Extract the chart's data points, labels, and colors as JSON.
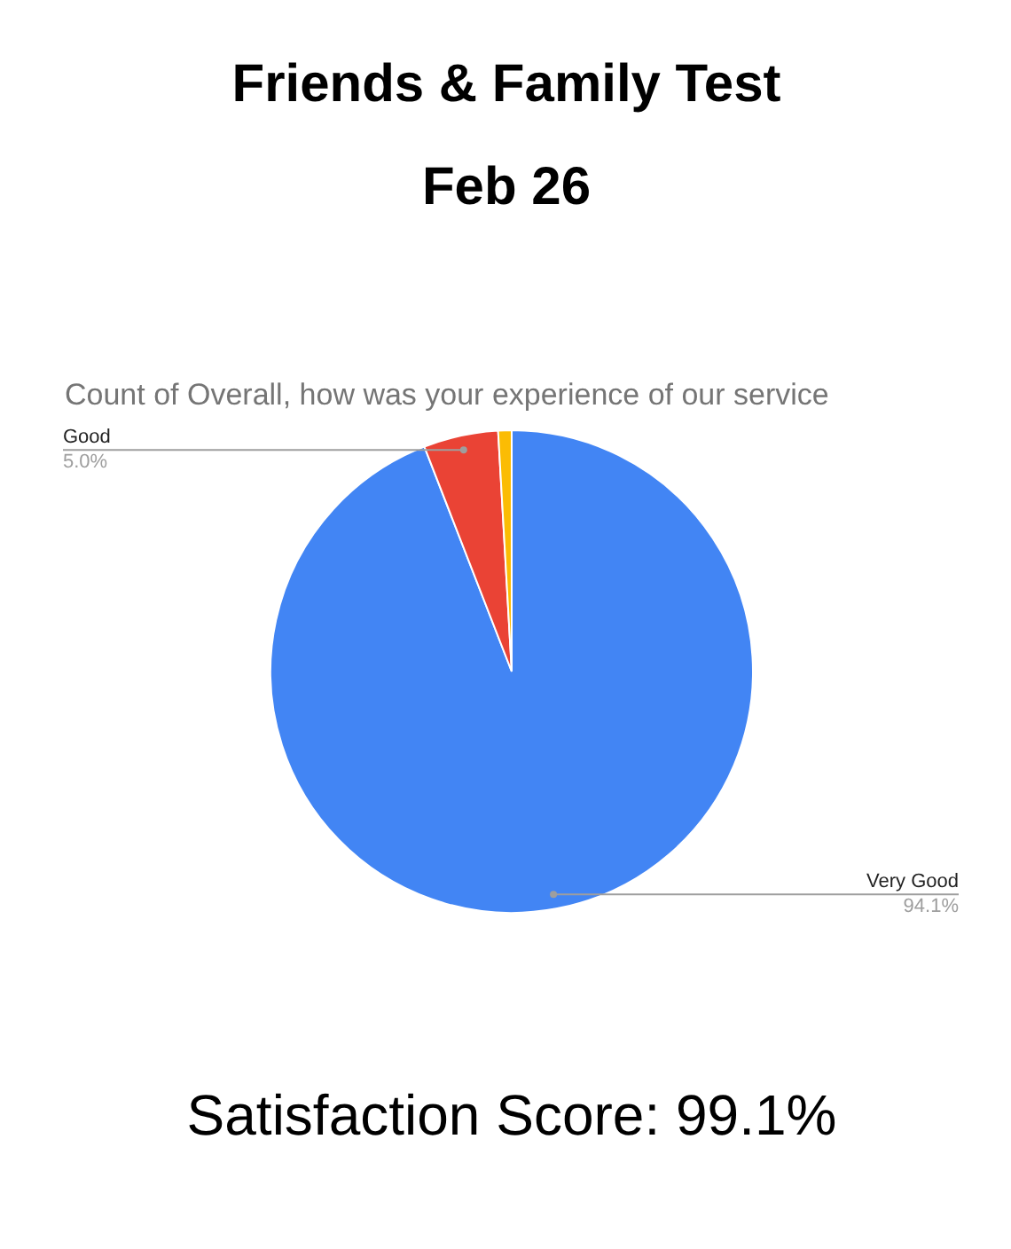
{
  "chart_data": {
    "type": "pie",
    "title": "Friends & Family Test",
    "subtitle": "Feb 26",
    "annotations": [
      "Count of Overall, how was your experience of our service",
      "Satisfaction Score: 99.1%"
    ],
    "categories": [
      "Very Good",
      "Good",
      null
    ],
    "values": [
      94.1,
      5.0,
      0.9
    ],
    "colors": [
      "#4285f4",
      "#ea4335",
      "#fbbc04"
    ],
    "value_labels": [
      "94.1%",
      "5.0%",
      null
    ]
  }
}
